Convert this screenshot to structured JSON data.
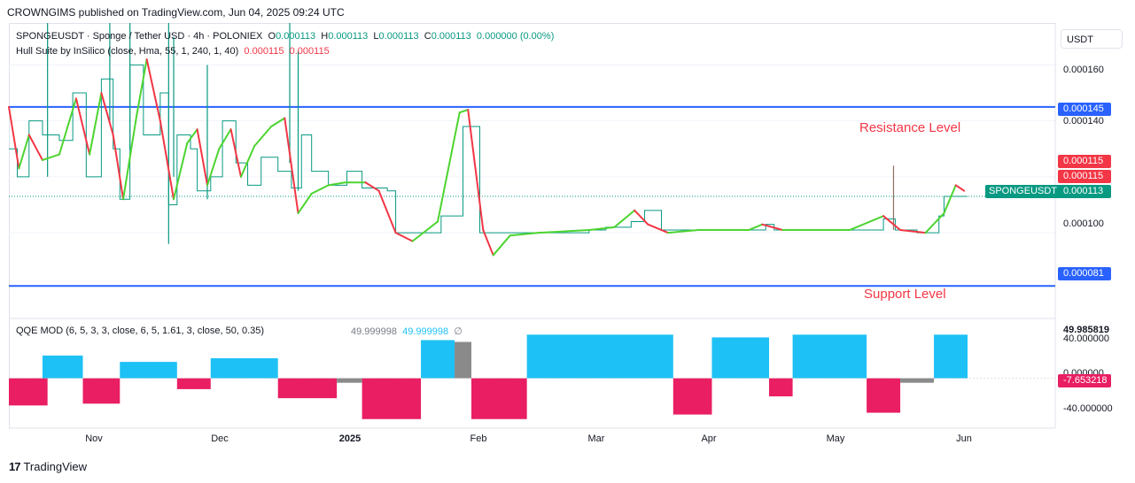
{
  "header": {
    "publisher": "CROWNGIMS published on TradingView.com, Jun 04, 2025 09:24 UTC"
  },
  "legend": {
    "symbol": "SPONGEUSDT · Sponge / Tether USD · 4h · POLONIEX",
    "o_label": "O",
    "o_val": "0.000113",
    "h_label": "H",
    "h_val": "0.000113",
    "l_label": "L",
    "l_val": "0.000113",
    "c_label": "C",
    "c_val": "0.000113",
    "change": "0.000000 (0.00%)",
    "hull_name": "Hull Suite by InSilico (close, Hma, 55, 1, 240, 1, 40)",
    "hull_v1": "0.000115",
    "hull_v2": "0.000115",
    "qqe_name": "QQE MOD (6, 5, 3, 3, close, 6, 5, 1.61, 3, close, 50, 0.35)",
    "qqe_v1": "49.999998",
    "qqe_v2": "49.999998",
    "qqe_v3": "∅"
  },
  "currency": "USDT",
  "price_axis": {
    "ticks": [
      "0.000160",
      "0.000140",
      "0.000100"
    ],
    "resistance_tag": "0.000145",
    "support_tag": "0.000081",
    "hull_tag_1": "0.000115",
    "hull_tag_2": "0.000115",
    "last_tag": "0.000113",
    "symbol_tag": "SPONGEUSDT"
  },
  "qqe_axis": {
    "ticks": [
      "49.985819",
      "40.000000",
      "0.000000",
      "-7.653218",
      "-40.000000"
    ]
  },
  "time_axis": [
    "Nov",
    "Dec",
    "2025",
    "Feb",
    "Mar",
    "Apr",
    "May",
    "Jun"
  ],
  "annotations": {
    "resistance": "Resistance Level",
    "support": "Support Level"
  },
  "brand": "TradingView",
  "colors": {
    "hull_up": "#4cd430",
    "hull_down": "#f23645",
    "price": "#089981",
    "level": "#2962ff",
    "qqe_blue": "#1ec1f5",
    "qqe_pink": "#e91e63",
    "qqe_gray": "#8a8a8a"
  },
  "chart_data": {
    "type": "line",
    "title": "SPONGEUSDT · Sponge / Tether USD · 4h · POLONIEX",
    "ylabel": "USDT",
    "ylim": [
      7e-05,
      0.000175
    ],
    "levels": [
      {
        "name": "Resistance Level",
        "value": 0.000145
      },
      {
        "name": "Support Level",
        "value": 8.1e-05
      }
    ],
    "last_price": 0.000113,
    "x_labels": [
      "Nov",
      "Dec",
      "2025",
      "Feb",
      "Mar",
      "Apr",
      "May",
      "Jun"
    ],
    "price": [
      [
        0,
        0.00013
      ],
      [
        5,
        0.00013
      ],
      [
        5,
        0.00012
      ],
      [
        12,
        0.00014
      ],
      [
        20,
        0.000135
      ],
      [
        30,
        0.000133
      ],
      [
        38,
        0.00015
      ],
      [
        46,
        0.00012
      ],
      [
        55,
        0.000155
      ],
      [
        62,
        0.00013
      ],
      [
        66,
        0.000112
      ],
      [
        72,
        0.00016
      ],
      [
        80,
        0.000135
      ],
      [
        90,
        0.00015
      ],
      [
        95,
        0.00011
      ],
      [
        100,
        0.000135
      ],
      [
        108,
        0.00013
      ],
      [
        112,
        0.000115
      ],
      [
        120,
        0.00012
      ],
      [
        127,
        0.00014
      ],
      [
        135,
        0.000125
      ],
      [
        142,
        0.000117
      ],
      [
        150,
        0.000127
      ],
      [
        160,
        0.000122
      ],
      [
        168,
        0.000116
      ],
      [
        174,
        0.000135
      ],
      [
        180,
        0.000122
      ],
      [
        190,
        0.000117
      ],
      [
        200,
        0.000117
      ],
      [
        201,
        0.000122
      ],
      [
        210,
        0.000116
      ],
      [
        225,
        0.000115
      ],
      [
        230,
        0.0001
      ],
      [
        255,
        0.0001
      ],
      [
        257,
        0.000106
      ],
      [
        270,
        0.000138
      ],
      [
        276,
        0.000138
      ],
      [
        280,
        0.0001
      ],
      [
        300,
        0.0001
      ],
      [
        330,
        0.0001
      ],
      [
        345,
        0.000101
      ],
      [
        355,
        0.000102
      ],
      [
        370,
        0.000104
      ],
      [
        378,
        0.000108
      ],
      [
        388,
        0.000101
      ],
      [
        400,
        0.000101
      ],
      [
        440,
        0.000101
      ],
      [
        450,
        0.000103
      ],
      [
        455,
        0.000101
      ],
      [
        480,
        0.000101
      ],
      [
        500,
        0.000101
      ],
      [
        515,
        0.000101
      ],
      [
        520,
        0.000105
      ],
      [
        527,
        0.000101
      ],
      [
        540,
        0.0001
      ],
      [
        550,
        0.0001
      ],
      [
        553,
        0.000106
      ],
      [
        556,
        0.000113
      ],
      [
        560,
        0.000113
      ],
      [
        570,
        0.000113
      ]
    ],
    "hull": [
      [
        0,
        0.000145
      ],
      [
        6,
        0.000123
      ],
      [
        12,
        0.000135
      ],
      [
        20,
        0.000126
      ],
      [
        30,
        0.000128
      ],
      [
        40,
        0.000148
      ],
      [
        48,
        0.000128
      ],
      [
        55,
        0.00015
      ],
      [
        62,
        0.000135
      ],
      [
        68,
        0.000112
      ],
      [
        76,
        0.000142
      ],
      [
        82,
        0.000162
      ],
      [
        90,
        0.00014
      ],
      [
        98,
        0.000112
      ],
      [
        106,
        0.000132
      ],
      [
        112,
        0.000137
      ],
      [
        118,
        0.000117
      ],
      [
        125,
        0.00013
      ],
      [
        132,
        0.000137
      ],
      [
        138,
        0.00012
      ],
      [
        146,
        0.000131
      ],
      [
        156,
        0.000138
      ],
      [
        164,
        0.000141
      ],
      [
        172,
        0.000107
      ],
      [
        180,
        0.000114
      ],
      [
        190,
        0.000117
      ],
      [
        200,
        0.000118
      ],
      [
        212,
        0.000118
      ],
      [
        220,
        0.000115
      ],
      [
        230,
        0.0001
      ],
      [
        240,
        9.7e-05
      ],
      [
        255,
        0.000104
      ],
      [
        268,
        0.000143
      ],
      [
        273,
        0.000144
      ],
      [
        282,
        0.000101
      ],
      [
        288,
        9.2e-05
      ],
      [
        298,
        9.9e-05
      ],
      [
        315,
        0.0001
      ],
      [
        345,
        0.000101
      ],
      [
        360,
        0.000102
      ],
      [
        372,
        0.000108
      ],
      [
        380,
        0.000103
      ],
      [
        392,
        0.0001
      ],
      [
        410,
        0.000101
      ],
      [
        440,
        0.000101
      ],
      [
        448,
        0.000103
      ],
      [
        460,
        0.000101
      ],
      [
        500,
        0.000101
      ],
      [
        520,
        0.000106
      ],
      [
        530,
        0.000101
      ],
      [
        545,
        0.0001
      ],
      [
        556,
        0.000107
      ],
      [
        563,
        0.000117
      ],
      [
        568,
        0.000115
      ]
    ],
    "qqe": {
      "ylim": [
        -55,
        60
      ],
      "segments": [
        {
          "from": 0,
          "to": 23,
          "base": -30,
          "color": "pink"
        },
        {
          "from": 20,
          "to": 44,
          "base": 25,
          "color": "blue"
        },
        {
          "from": 44,
          "to": 66,
          "base": -28,
          "color": "pink"
        },
        {
          "from": 66,
          "to": 100,
          "base": 18,
          "color": "blue"
        },
        {
          "from": 100,
          "to": 120,
          "base": -12,
          "color": "pink"
        },
        {
          "from": 120,
          "to": 160,
          "base": 22,
          "color": "blue"
        },
        {
          "from": 160,
          "to": 195,
          "base": -22,
          "color": "pink"
        },
        {
          "from": 195,
          "to": 210,
          "base": -5,
          "color": "gray"
        },
        {
          "from": 210,
          "to": 245,
          "base": -45,
          "color": "pink"
        },
        {
          "from": 245,
          "to": 265,
          "base": 42,
          "color": "blue"
        },
        {
          "from": 265,
          "to": 275,
          "base": 40,
          "color": "gray"
        },
        {
          "from": 275,
          "to": 308,
          "base": -45,
          "color": "pink"
        },
        {
          "from": 308,
          "to": 395,
          "base": 48,
          "color": "blue"
        },
        {
          "from": 395,
          "to": 418,
          "base": -40,
          "color": "pink"
        },
        {
          "from": 418,
          "to": 452,
          "base": 45,
          "color": "blue"
        },
        {
          "from": 452,
          "to": 466,
          "base": -20,
          "color": "pink"
        },
        {
          "from": 466,
          "to": 510,
          "base": 48,
          "color": "blue"
        },
        {
          "from": 510,
          "to": 530,
          "base": -38,
          "color": "pink"
        },
        {
          "from": 530,
          "to": 550,
          "base": -5,
          "color": "gray"
        },
        {
          "from": 550,
          "to": 570,
          "base": 48,
          "color": "blue"
        }
      ]
    }
  }
}
